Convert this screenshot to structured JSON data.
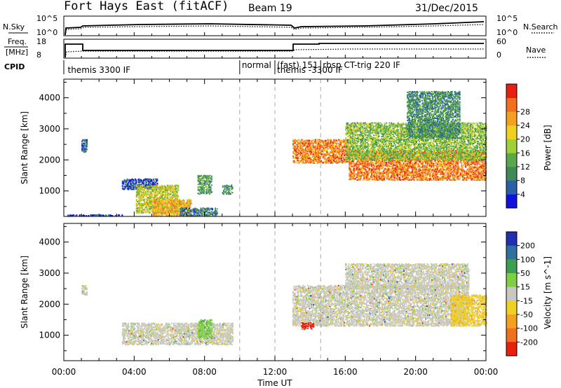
{
  "header": {
    "radar": "Fort Hays East (fitACF)",
    "beam": "Beam 19",
    "date": "31/Dec/2015"
  },
  "top_panels": {
    "nsky_label": "N.Sky",
    "nsearch_label": "N.Search",
    "noise_ticks": [
      "10^5",
      "10^0"
    ],
    "freq_label_1": "Freq.",
    "freq_label_2": "[MHz]",
    "freq_ticks": [
      "18",
      "8"
    ],
    "nave_label": "Nave",
    "nave_ticks": [
      "60",
      "0"
    ],
    "cpid_label": "CPID",
    "programs": [
      {
        "name": "themis 3300 IF",
        "start_hour": 0.1
      },
      {
        "name": "normal",
        "start_hour": 10.0
      },
      {
        "name": "(fast) 151",
        "start_hour": 12.0
      },
      {
        "name": "themis -3300 IF",
        "start_hour": 12.0
      },
      {
        "name": "rbsp CT-trig 220 IF",
        "start_hour": 14.6
      }
    ]
  },
  "chart_data": [
    {
      "type": "heatmap",
      "title": "Power",
      "ylabel": "Slant Range [km]",
      "xlabel": "",
      "xlim": [
        0,
        24
      ],
      "ylim": [
        180,
        4600
      ],
      "yticks": [
        "1000",
        "2000",
        "3000",
        "4000"
      ],
      "colorbar": {
        "label": "Power [dB]",
        "ticks": [
          "4",
          "8",
          "12",
          "16",
          "20",
          "24",
          "28"
        ],
        "range": [
          0,
          32
        ],
        "colors": [
          "#1010e0",
          "#2a60a8",
          "#3e8a58",
          "#5aa84a",
          "#9fd03a",
          "#f0d020",
          "#f5a020",
          "#f07020",
          "#e82010"
        ]
      },
      "features": [
        {
          "t_start": 0.2,
          "t_end": 3.3,
          "range_low": 200,
          "range_high": 240,
          "level": 0.12
        },
        {
          "t_start": 1.0,
          "t_end": 1.3,
          "range_low": 2250,
          "range_high": 2650,
          "level": 0.18
        },
        {
          "t_start": 3.3,
          "t_end": 5.3,
          "range_low": 1050,
          "range_high": 1400,
          "level": 0.12
        },
        {
          "t_start": 4.1,
          "t_end": 6.5,
          "range_low": 300,
          "range_high": 1200,
          "level": 0.55
        },
        {
          "t_start": 5.0,
          "t_end": 7.2,
          "range_low": 200,
          "range_high": 750,
          "level": 0.7
        },
        {
          "t_start": 6.6,
          "t_end": 8.7,
          "range_low": 200,
          "range_high": 450,
          "level": 0.25
        },
        {
          "t_start": 7.6,
          "t_end": 8.4,
          "range_low": 900,
          "range_high": 1500,
          "level": 0.35
        },
        {
          "t_start": 9.0,
          "t_end": 9.6,
          "range_low": 900,
          "range_high": 1200,
          "level": 0.3
        },
        {
          "t_start": 13.0,
          "t_end": 16.2,
          "range_low": 1900,
          "range_high": 2650,
          "level": 0.78
        },
        {
          "t_start": 16.2,
          "t_end": 24.0,
          "range_low": 1350,
          "range_high": 2300,
          "level": 0.8
        },
        {
          "t_start": 16.0,
          "t_end": 24.0,
          "range_low": 2000,
          "range_high": 3200,
          "level": 0.45
        },
        {
          "t_start": 19.5,
          "t_end": 22.5,
          "range_low": 2700,
          "range_high": 4200,
          "level": 0.3
        }
      ]
    },
    {
      "type": "heatmap",
      "title": "Velocity",
      "ylabel": "Slant Range [km]",
      "xlabel": "Time UT",
      "xlim": [
        0,
        24
      ],
      "ylim": [
        180,
        4600
      ],
      "yticks": [
        "1000",
        "2000",
        "3000",
        "4000"
      ],
      "xticks": [
        "00:00",
        "04:00",
        "08:00",
        "12:00",
        "16:00",
        "20:00",
        "00:00"
      ],
      "colorbar": {
        "label": "Velocity [m s^-1]",
        "ticks": [
          "200",
          "100",
          "50",
          "15",
          "-15",
          "-50",
          "-100",
          "-200"
        ],
        "colors": [
          "#2030b0",
          "#3070a0",
          "#3aa050",
          "#7fd040",
          "#c8c8c0",
          "#f0d020",
          "#f5a020",
          "#f07020",
          "#e82010"
        ]
      },
      "features": [
        {
          "t_start": 1.0,
          "t_end": 1.3,
          "range_low": 2300,
          "range_high": 2600,
          "velocity_class": "ground"
        },
        {
          "t_start": 3.3,
          "t_end": 9.6,
          "range_low": 700,
          "range_high": 1400,
          "velocity_class": "ground"
        },
        {
          "t_start": 7.6,
          "t_end": 8.4,
          "range_low": 900,
          "range_high": 1500,
          "velocity_class": "15 to 50"
        },
        {
          "t_start": 13.0,
          "t_end": 23.0,
          "range_low": 1300,
          "range_high": 2600,
          "velocity_class": "ground"
        },
        {
          "t_start": 16.0,
          "t_end": 23.0,
          "range_low": 2500,
          "range_high": 3300,
          "velocity_class": "ground"
        },
        {
          "t_start": 22.0,
          "t_end": 24.0,
          "range_low": 1300,
          "range_high": 2300,
          "velocity_class": "-15 to -50"
        },
        {
          "t_start": 13.5,
          "t_end": 14.2,
          "range_low": 1200,
          "range_high": 1400,
          "velocity_class": "-100 to -200"
        }
      ]
    }
  ]
}
